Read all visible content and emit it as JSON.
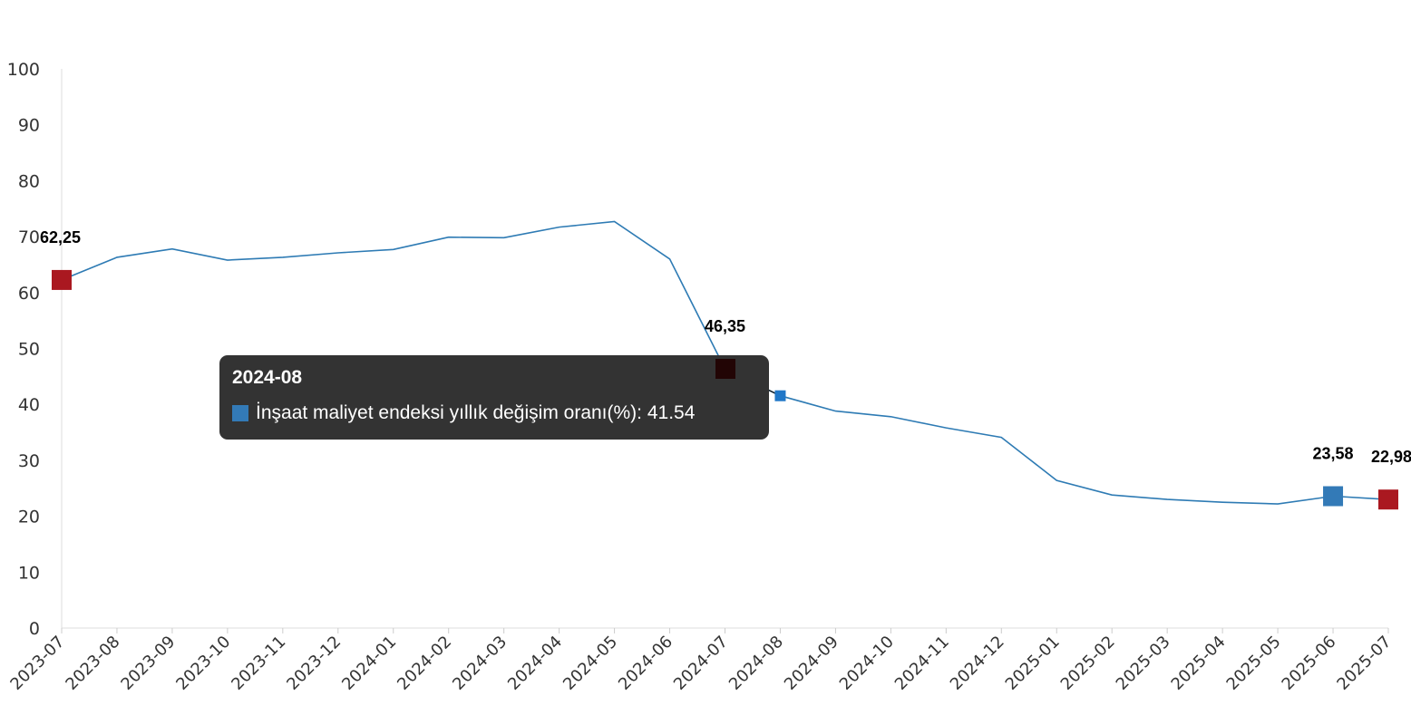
{
  "chart_data": {
    "type": "line",
    "categories": [
      "2023-07",
      "2023-08",
      "2023-09",
      "2023-10",
      "2023-11",
      "2023-12",
      "2024-01",
      "2024-02",
      "2024-03",
      "2024-04",
      "2024-05",
      "2024-06",
      "2024-07",
      "2024-08",
      "2024-09",
      "2024-10",
      "2024-11",
      "2024-12",
      "2025-01",
      "2025-02",
      "2025-03",
      "2025-04",
      "2025-05",
      "2025-06",
      "2025-07"
    ],
    "series": [
      {
        "name": "İnşaat maliyet endeksi yıllık değişim oranı(%)",
        "values": [
          62.25,
          66.3,
          67.8,
          65.8,
          66.3,
          67.1,
          67.7,
          69.9,
          69.8,
          71.7,
          72.7,
          66.0,
          46.35,
          41.54,
          38.8,
          37.8,
          35.8,
          34.1,
          26.4,
          23.8,
          23.0,
          22.5,
          22.2,
          23.58,
          22.98
        ],
        "color": "#2e7bb4"
      }
    ],
    "ylim": [
      0,
      100
    ],
    "yticks": [
      0,
      10,
      20,
      30,
      40,
      50,
      60,
      70,
      80,
      90,
      100
    ],
    "grid": false,
    "legend": "none",
    "highlighted_points": [
      {
        "category": "2023-07",
        "value": 62.25,
        "label": "62,25",
        "color": "#aa1820"
      },
      {
        "category": "2024-07",
        "value": 46.35,
        "label": "46,35",
        "color": "#220505"
      },
      {
        "category": "2025-06",
        "value": 23.58,
        "label": "23,58",
        "color": "#337ab7"
      },
      {
        "category": "2025-07",
        "value": 22.98,
        "label": "22,98",
        "color": "#aa1820"
      }
    ],
    "hovered_point": {
      "category": "2024-08",
      "value": 41.54,
      "color": "#1f77c8"
    }
  },
  "tooltip": {
    "title": "2024-08",
    "series_name": "İnşaat maliyet endeksi yıllık değişim oranı(%)",
    "value_text": ": 41.54",
    "swatch_color": "#337ab7"
  }
}
